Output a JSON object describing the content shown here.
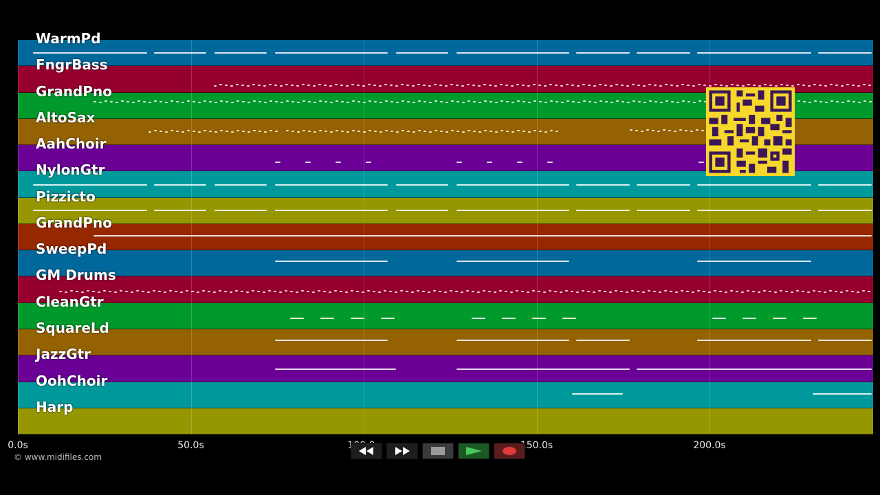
{
  "tracks": [
    {
      "label": "WarmPd",
      "color": "#00689a"
    },
    {
      "label": "FngrBass",
      "color": "#96002f"
    },
    {
      "label": "GrandPno",
      "color": "#009a2c"
    },
    {
      "label": "AltoSax",
      "color": "#946200"
    },
    {
      "label": "AahChoir",
      "color": "#6a0096"
    },
    {
      "label": "NylonGtr",
      "color": "#00999b"
    },
    {
      "label": "Pizzicto",
      "color": "#969600"
    },
    {
      "label": "GrandPno",
      "color": "#962800"
    },
    {
      "label": "SweepPd",
      "color": "#00689a"
    },
    {
      "label": "GM Drums",
      "color": "#96002f"
    },
    {
      "label": "CleanGtr",
      "color": "#009a2c"
    },
    {
      "label": "SquareLd",
      "color": "#946200"
    },
    {
      "label": "JazzGtr",
      "color": "#6a0096"
    },
    {
      "label": "OohChoir",
      "color": "#00999b"
    },
    {
      "label": "Harp",
      "color": "#969600"
    }
  ],
  "timeline": {
    "ticks": [
      "0.0s",
      "50.0s",
      "100.0s",
      "150.0s",
      "200.0s"
    ]
  },
  "copyright": "© www.midifiles.com",
  "transport": {
    "rewind": "rewind-icon",
    "fast_forward": "fast-forward-icon",
    "stop": "stop-icon",
    "play": "play-icon",
    "record": "record-icon"
  },
  "qr_code": "qr-code-icon"
}
